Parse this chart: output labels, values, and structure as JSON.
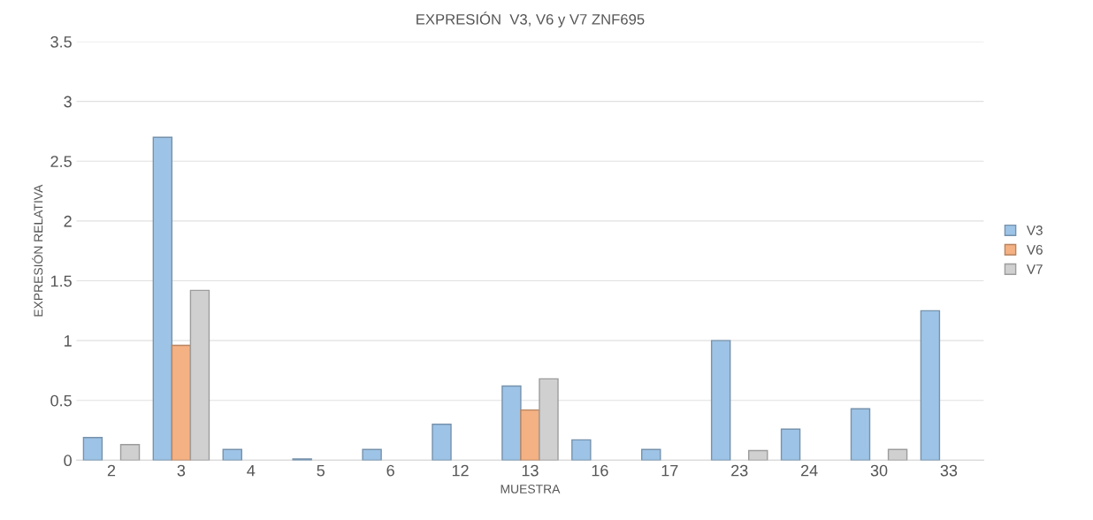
{
  "chart_data": {
    "type": "bar",
    "title": "EXPRESIÓN  V3, V6 y V7 ZNF695",
    "xlabel": "MUESTRA",
    "ylabel": "EXPRESIÓN RELATIVA",
    "categories": [
      "2",
      "3",
      "4",
      "5",
      "6",
      "12",
      "13",
      "16",
      "17",
      "23",
      "24",
      "30",
      "33"
    ],
    "series": [
      {
        "name": "V3",
        "color": "#9dc3e6",
        "values": [
          0.19,
          2.7,
          0.09,
          0.01,
          0.09,
          0.3,
          0.62,
          0.17,
          0.09,
          1.0,
          0.26,
          0.43,
          1.25
        ]
      },
      {
        "name": "V6",
        "color": "#f4b183",
        "values": [
          null,
          0.96,
          null,
          null,
          null,
          null,
          0.42,
          null,
          null,
          null,
          null,
          null,
          null
        ]
      },
      {
        "name": "V7",
        "color": "#d0d0d0",
        "values": [
          0.13,
          1.42,
          null,
          null,
          null,
          null,
          0.68,
          null,
          null,
          0.08,
          null,
          0.09,
          null
        ]
      }
    ],
    "ylim": [
      0,
      3.5
    ],
    "yticks": [
      0,
      0.5,
      1,
      1.5,
      2,
      2.5,
      3,
      3.5
    ],
    "grid": true,
    "legend": "right"
  }
}
